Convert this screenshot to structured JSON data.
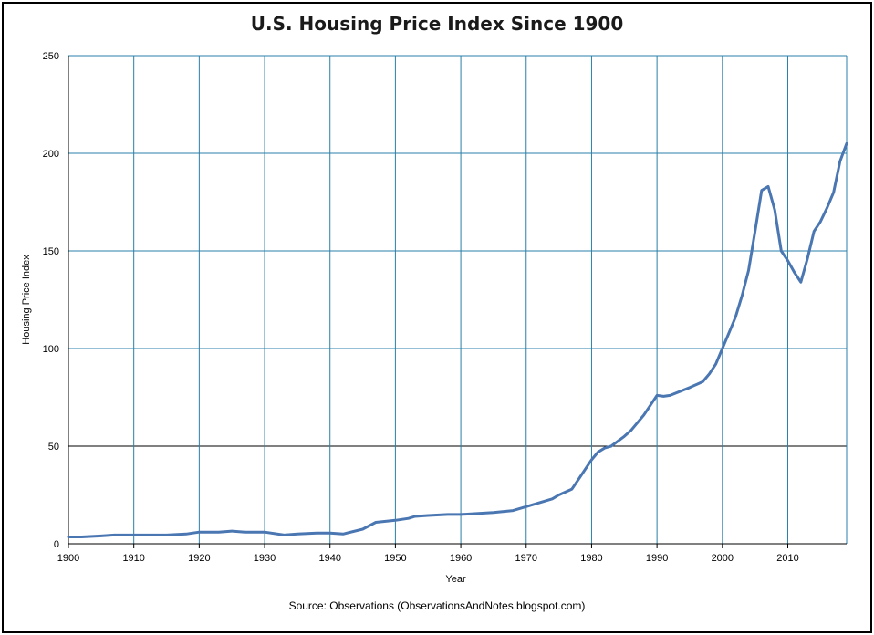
{
  "chart_data": {
    "type": "line",
    "title": "U.S. Housing Price Index Since 1900",
    "xlabel": "Year",
    "ylabel": "Housing Price Index",
    "source": "Source: Observations  (ObservationsAndNotes.blogspot.com)",
    "xlim": [
      1900,
      2019
    ],
    "ylim": [
      0,
      250
    ],
    "x_ticks": [
      1900,
      1910,
      1920,
      1930,
      1940,
      1950,
      1960,
      1970,
      1980,
      1990,
      2000,
      2010
    ],
    "y_ticks": [
      0,
      50,
      100,
      150,
      200,
      250
    ],
    "grid": true,
    "legend": "none",
    "colors": {
      "line": "#4a76b2",
      "grid": "#2a7fa8",
      "baseline": "#000000"
    },
    "series": [
      {
        "x": [
          1900,
          1902,
          1905,
          1907,
          1910,
          1913,
          1915,
          1918,
          1920,
          1923,
          1925,
          1927,
          1930,
          1933,
          1935,
          1938,
          1940,
          1942,
          1945,
          1947,
          1950,
          1952,
          1953,
          1955,
          1958,
          1960,
          1965,
          1968,
          1970,
          1972,
          1974,
          1975,
          1977,
          1978,
          1980,
          1981,
          1982,
          1983,
          1985,
          1986,
          1988,
          1990,
          1991,
          1992,
          1995,
          1997,
          1998,
          1999,
          2000,
          2001,
          2002,
          2003,
          2004,
          2005,
          2006,
          2007,
          2008,
          2009,
          2010,
          2011,
          2012,
          2013,
          2014,
          2015,
          2016,
          2017,
          2018,
          2019
        ],
        "y": [
          3.5,
          3.5,
          4,
          4.5,
          4.5,
          4.5,
          4.5,
          5,
          6,
          6,
          6.5,
          6,
          6,
          4.5,
          5,
          5.5,
          5.5,
          5,
          7.5,
          11,
          12,
          13,
          14,
          14.5,
          15,
          15,
          16,
          17,
          19,
          21,
          23,
          25,
          28,
          33,
          43,
          47,
          49,
          50,
          55,
          58,
          66,
          76,
          75.5,
          76,
          80,
          83,
          87,
          92,
          100,
          108,
          116,
          127,
          140,
          160,
          181,
          183,
          171,
          150,
          145,
          139,
          134,
          146,
          160,
          165,
          172,
          180,
          196,
          205
        ]
      }
    ]
  }
}
